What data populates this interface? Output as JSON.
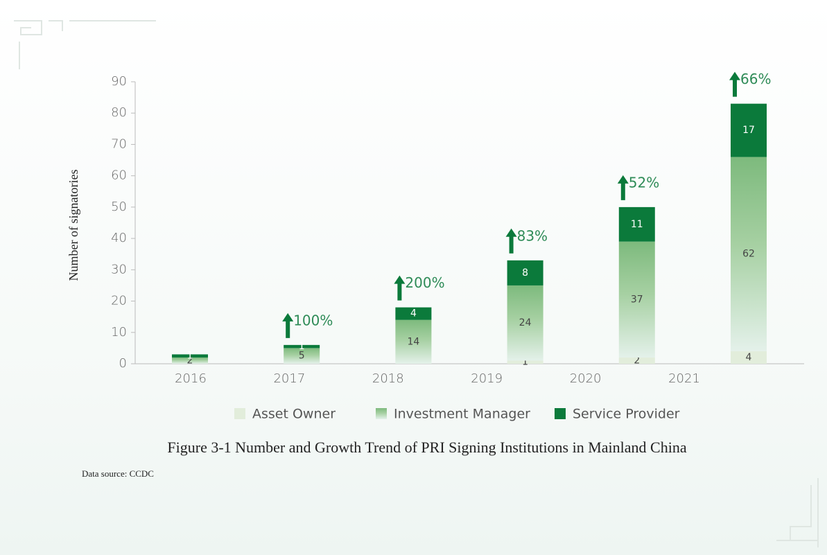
{
  "chart_data": {
    "type": "bar",
    "stacked": true,
    "y_label": "Number of signatories",
    "categories": [
      "2016",
      "2017",
      "2018",
      "2019",
      "2020",
      "2021"
    ],
    "series": [
      {
        "name": "Asset Owner",
        "color": "#e2eddb",
        "values": [
          null,
          null,
          null,
          1,
          2,
          4
        ]
      },
      {
        "name": "Investment Manager",
        "color": "#7dba7d",
        "values": [
          2,
          5,
          14,
          24,
          37,
          62
        ]
      },
      {
        "name": "Service Provider",
        "color": "#0b7a3b",
        "values": [
          1,
          1,
          4,
          8,
          11,
          17
        ]
      }
    ],
    "growth_labels": [
      null,
      "100%",
      "200%",
      "83%",
      "52%",
      "66%"
    ],
    "ylim": [
      0,
      90
    ],
    "yticks": [
      0,
      10,
      20,
      30,
      40,
      50,
      60,
      70,
      80,
      90
    ],
    "caption": "Figure 3-1 Number and Growth Trend of PRI Signing Institutions in Mainland China",
    "source": "Data source: CCDC"
  }
}
